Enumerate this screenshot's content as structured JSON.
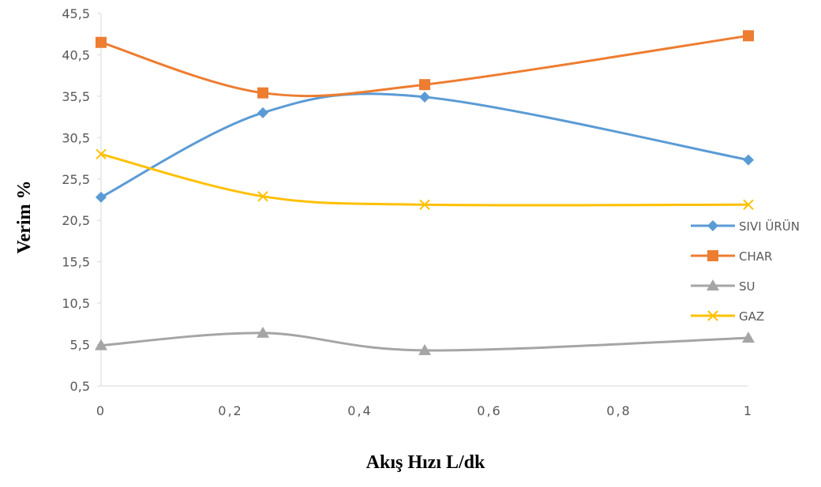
{
  "chart_data": {
    "type": "line",
    "title": "",
    "xlabel": "Akış Hızı L/dk",
    "ylabel": "Verim %",
    "xlim": [
      0,
      1
    ],
    "ylim": [
      0.5,
      45.5
    ],
    "x_ticks": [
      "0",
      "0,2",
      "0,4",
      "0,6",
      "0,8",
      "1"
    ],
    "y_ticks": [
      "0,5",
      "5,5",
      "10,5",
      "15,5",
      "20,5",
      "25,5",
      "30,5",
      "35,5",
      "40,5",
      "45,5"
    ],
    "grid": false,
    "smooth": true,
    "legend_position": "right",
    "series": [
      {
        "name": "SIVI ÜRÜN",
        "color": "#5B9BD5",
        "marker": "diamond",
        "x": [
          0,
          0.25,
          0.5,
          1
        ],
        "y": [
          23.3,
          33.5,
          35.4,
          27.8
        ]
      },
      {
        "name": "CHAR",
        "color": "#ED7D31",
        "marker": "square",
        "x": [
          0,
          0.25,
          0.5,
          1
        ],
        "y": [
          42.0,
          35.9,
          36.9,
          42.8
        ]
      },
      {
        "name": "SU",
        "color": "#A5A5A5",
        "marker": "triangle",
        "x": [
          0,
          0.25,
          0.5,
          1
        ],
        "y": [
          5.4,
          6.9,
          4.8,
          6.3
        ]
      },
      {
        "name": "GAZ",
        "color": "#FFC000",
        "marker": "x",
        "x": [
          0,
          0.25,
          0.5,
          1
        ],
        "y": [
          28.5,
          23.4,
          22.4,
          22.4
        ]
      }
    ]
  }
}
